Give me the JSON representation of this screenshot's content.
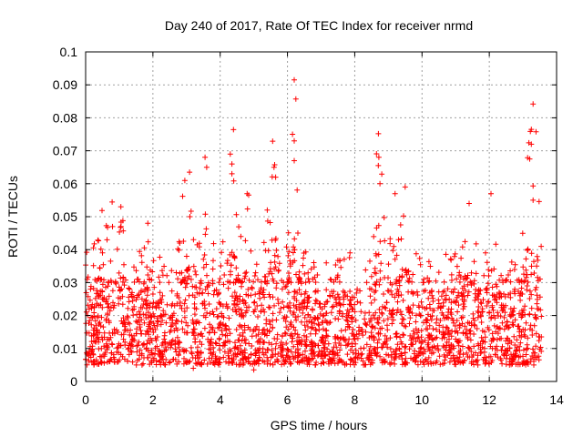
{
  "chart_data": {
    "type": "scatter",
    "title": "Day 240 of 2017, Rate Of TEC Index for receiver nrmd",
    "xlabel": "GPS time / hours",
    "ylabel": "ROTI / TECUs",
    "xlim": [
      0,
      14
    ],
    "ylim": [
      0,
      0.1
    ],
    "x_ticks": [
      "0",
      "2",
      "4",
      "6",
      "8",
      "10",
      "12",
      "14"
    ],
    "y_ticks": [
      "0",
      "0.01",
      "0.02",
      "0.03",
      "0.04",
      "0.05",
      "0.06",
      "0.07",
      "0.08",
      "0.09",
      "0.1"
    ],
    "grid": true,
    "marker": "+",
    "marker_color": "#ff0000",
    "data_span_hours": [
      0,
      13.55
    ],
    "baseline_band": [
      0.005,
      0.03
    ],
    "series": [
      {
        "name": "ROTI",
        "notable_points": [
          {
            "x": 0.05,
            "y": 0.031
          },
          {
            "x": 0.5,
            "y": 0.039
          },
          {
            "x": 0.8,
            "y": 0.047
          },
          {
            "x": 1.05,
            "y": 0.047
          },
          {
            "x": 1.85,
            "y": 0.048
          },
          {
            "x": 2.95,
            "y": 0.061
          },
          {
            "x": 3.1,
            "y": 0.05
          },
          {
            "x": 3.55,
            "y": 0.068
          },
          {
            "x": 3.6,
            "y": 0.065
          },
          {
            "x": 4.3,
            "y": 0.069
          },
          {
            "x": 4.35,
            "y": 0.066
          },
          {
            "x": 4.35,
            "y": 0.063
          },
          {
            "x": 4.8,
            "y": 0.057
          },
          {
            "x": 5.6,
            "y": 0.065
          },
          {
            "x": 5.65,
            "y": 0.062
          },
          {
            "x": 5.4,
            "y": 0.052
          },
          {
            "x": 6.2,
            "y": 0.0915
          },
          {
            "x": 6.25,
            "y": 0.0857
          },
          {
            "x": 6.15,
            "y": 0.075
          },
          {
            "x": 6.2,
            "y": 0.073
          },
          {
            "x": 6.2,
            "y": 0.067
          },
          {
            "x": 8.7,
            "y": 0.0655
          },
          {
            "x": 8.75,
            "y": 0.06
          },
          {
            "x": 9.2,
            "y": 0.057
          },
          {
            "x": 9.5,
            "y": 0.059
          },
          {
            "x": 11.4,
            "y": 0.054
          },
          {
            "x": 12.05,
            "y": 0.057
          },
          {
            "x": 13.3,
            "y": 0.0842
          },
          {
            "x": 13.25,
            "y": 0.0765
          },
          {
            "x": 13.25,
            "y": 0.072
          },
          {
            "x": 13.2,
            "y": 0.0675
          },
          {
            "x": 13.3,
            "y": 0.0593
          },
          {
            "x": 13.3,
            "y": 0.055
          },
          {
            "x": 5.0,
            "y": 0.0035
          },
          {
            "x": 3.2,
            "y": 0.004
          }
        ]
      }
    ]
  }
}
